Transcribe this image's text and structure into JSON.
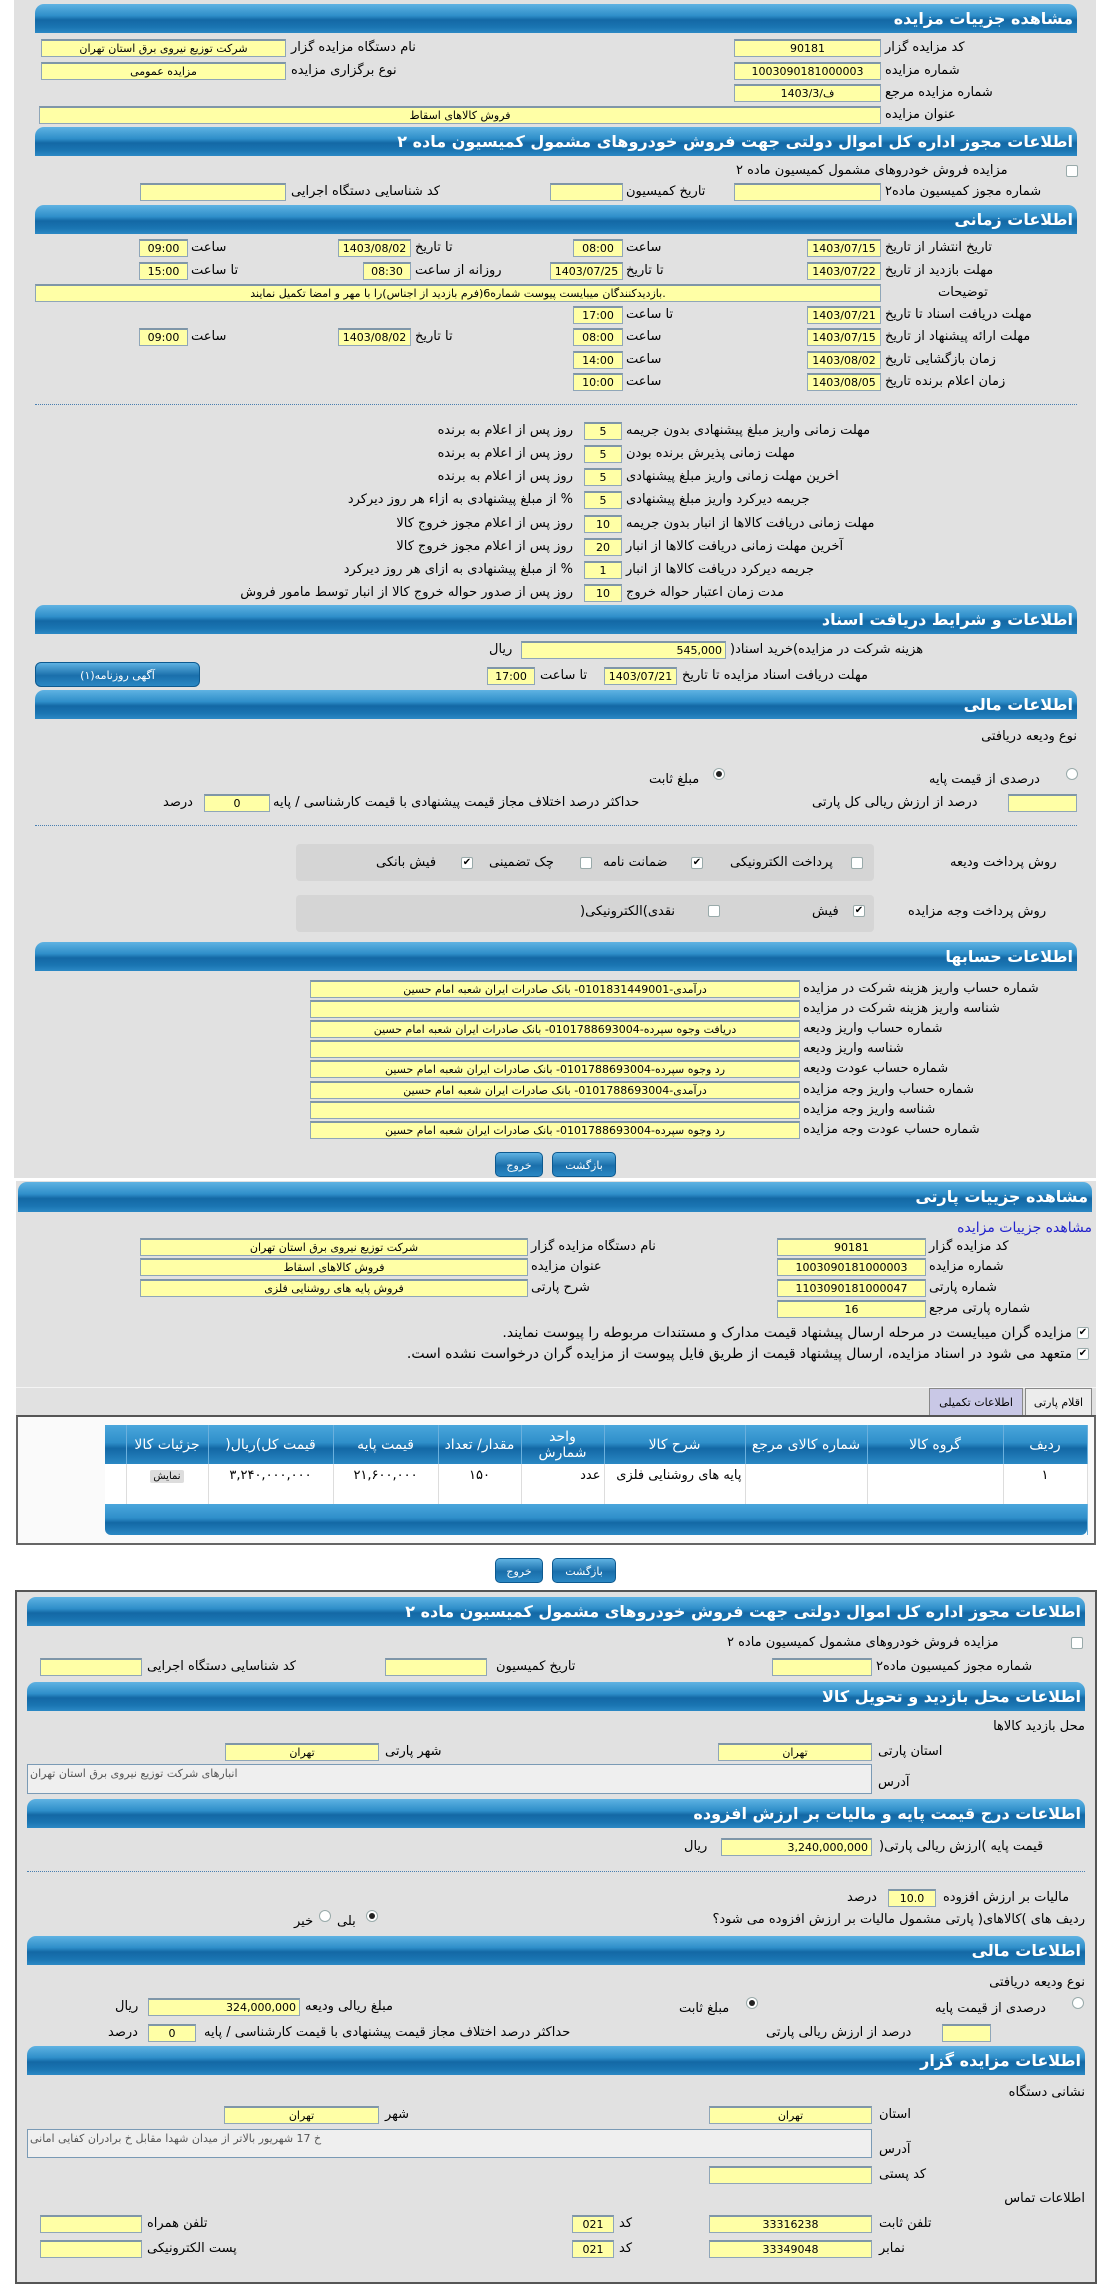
{
  "auction": {
    "header": "مشاهده جزییات مزایده",
    "code_label": "کد مزایده گزار",
    "code": "90181",
    "org_label": "نام دستگاه مزایده گزار",
    "org": "شرکت توزیع نیروی برق استان تهران",
    "number_label": "شماره مزایده",
    "number": "1003090181000003",
    "type_label": "نوع برگزاری مزایده",
    "type": "مزایده عمومی",
    "ref_label": "شماره مزایده مرجع",
    "ref": "1403/3/ف",
    "title_label": "عنوان مزایده",
    "title": "فروش کالاهای اسقاط"
  },
  "commission": {
    "header": "اطلاعات مجوز اداره کل اموال دولتی جهت فروش خودروهای مشمول کمیسیون ماده ۲",
    "checkbox_label": "مزایده فروش خودروهای مشمول کمیسیون ماده ۲",
    "checked": false,
    "permit_label": "شماره مجوز کمیسیون ماده۲",
    "permit": "",
    "date_label": "تاریخ کمیسیون",
    "date": "",
    "exec_label": "کد شناسایی دستگاه اجرایی",
    "exec": ""
  },
  "timing": {
    "header": "اطلاعات زمانی",
    "publish": {
      "label": "تاریخ انتشار  از تاریخ",
      "from": "1403/07/15",
      "time_label": "ساعت",
      "from_time": "08:00",
      "to_label": "تا تاریخ",
      "to": "1403/08/02",
      "to_time_label": "ساعت",
      "to_time": "09:00"
    },
    "visit": {
      "label": "مهلت بازدید  از تاریخ",
      "from": "1403/07/22",
      "to_label": "تا تاریخ",
      "to": "1403/07/25",
      "daily_label": "روزانه از ساعت",
      "daily_from": "08:30",
      "daily_to_label": "تا ساعت",
      "daily_to": "15:00"
    },
    "notes_label": "توضیحات",
    "notes": ".بازدیدکنندگان میبایست پیوست شماره6(فرم بازدید از اجناس)را با مهر و امضا تکمیل نمایند",
    "docs": {
      "label": "مهلت دریافت اسناد  تا تاریخ",
      "to": "1403/07/21",
      "time_label": "تا ساعت",
      "time": "17:00"
    },
    "offer": {
      "label": "مهلت ارائه پیشنهاد  از تاریخ",
      "from": "1403/07/15",
      "time_label": "ساعت",
      "from_time": "08:00",
      "to_label": "تا تاریخ",
      "to": "1403/08/02",
      "to_time_label": "ساعت",
      "to_time": "09:00"
    },
    "opening": {
      "label": "زمان بازگشایی  تاریخ",
      "date": "1403/08/02",
      "time_label": "ساعت",
      "time": "14:00"
    },
    "winner": {
      "label": "زمان اعلام برنده  تاریخ",
      "date": "1403/08/05",
      "time_label": "ساعت",
      "time": "10:00"
    }
  },
  "penalties": [
    {
      "label": "مهلت زمانی واریز مبلغ پیشنهادی بدون جریمه",
      "value": "5",
      "suffix": "روز پس از اعلام به برنده"
    },
    {
      "label": "مهلت زمانی پذیرش برنده بودن",
      "value": "5",
      "suffix": "روز پس از اعلام به برنده"
    },
    {
      "label": "اخرین مهلت زمانی واریز مبلغ پیشنهادی",
      "value": "5",
      "suffix": "روز پس از اعلام به برنده"
    },
    {
      "label": "جریمه دیرکرد واریز مبلغ پیشنهادی",
      "value": "5",
      "suffix": "% از مبلغ پیشنهادی به ازاء هر روز دیرکرد"
    },
    {
      "label": "مهلت زمانی دریافت کالاها از انبار بدون جریمه",
      "value": "10",
      "suffix": "روز پس از اعلام مجوز خروج کالا"
    },
    {
      "label": "آخرین مهلت زمانی دریافت کالاها از انبار",
      "value": "20",
      "suffix": "روز پس از اعلام مجوز خروج کالا"
    },
    {
      "label": "جریمه دیرکرد دریافت کالاها از انبار",
      "value": "1",
      "suffix": "% از مبلغ پیشنهادی به ازای هر روز دیرکرد"
    },
    {
      "label": "مدت زمان اعتبار حواله خروج",
      "value": "10",
      "suffix": "روز پس از صدور حواله خروج کالا از انبار توسط مامور فروش"
    }
  ],
  "documents": {
    "header": "اطلاعات و شرایط دریافت اسناد",
    "fee_label": "هزینه شرکت در مزایده)خرید اسناد(",
    "fee": "545,000",
    "currency": "ریال",
    "deadline_label": "مهلت دریافت اسناد مزایده تا تاریخ",
    "deadline": "1403/07/21",
    "time_label": "تا ساعت",
    "time": "17:00",
    "ad_button": "آگهی روزنامه(۱)"
  },
  "finance": {
    "header": "اطلاعات مالی",
    "deposit_type_label": "نوع ودیعه دریافتی",
    "opt_percent": "درصدی از قیمت پایه",
    "opt_fixed": "مبلغ ثابت",
    "selected": "مبلغ ثابت",
    "percent_value": "",
    "percent_label": "درصد از ارزش ریالی کل پارتی",
    "max_diff_label": "حداکثر درصد اختلاف مجاز قیمت پیشنهادی با قیمت کارشناسی / پایه",
    "max_diff": "0",
    "percent_unit": "درصد",
    "deposit_method_label": "روش پرداخت ودیعه",
    "deposit_methods": [
      {
        "label": "پرداخت الکترونیکی",
        "checked": false
      },
      {
        "label": "ضمانت نامه",
        "checked": true
      },
      {
        "label": "چک تضمینی",
        "checked": false
      },
      {
        "label": "فیش بانکی",
        "checked": true
      }
    ],
    "payment_method_label": "روش پرداخت وجه مزایده",
    "payment_methods": [
      {
        "label": "فیش",
        "checked": true
      },
      {
        "label": "نقدی)الکترونیکی(",
        "checked": false
      }
    ]
  },
  "accounts": {
    "header": "اطلاعات حسابها",
    "rows": [
      {
        "label": "شماره حساب واریز هزینه شرکت در مزایده",
        "value": "درآمدی-0101831449001- بانک صادرات ایران شعبه امام حسین"
      },
      {
        "label": "شناسه واریز هزینه شرکت در مزایده",
        "value": ""
      },
      {
        "label": "شماره حساب واریز ودیعه",
        "value": "دریافت وجوه سپرده-0101788693004- بانک صادرات ایران شعبه امام حسین"
      },
      {
        "label": "شناسه واریز ودیعه",
        "value": ""
      },
      {
        "label": "شماره حساب عودت ودیعه",
        "value": "رد وجوه سپرده-0101788693004- بانک صادرات ایران شعبه امام حسین"
      },
      {
        "label": "شماره حساب واریز وجه مزایده",
        "value": "درآمدی-0101788693004- بانک صادرات ایران شعبه امام حسین"
      },
      {
        "label": "شناسه واریز وجه مزایده",
        "value": ""
      },
      {
        "label": "شماره حساب عودت وجه مزایده",
        "value": "رد وجوه سپرده-0101788693004- بانک صادرات ایران شعبه امام حسین"
      }
    ]
  },
  "buttons": {
    "back": "بازگشت",
    "exit": "خروج"
  },
  "party": {
    "header": "مشاهده جزییات پارتی",
    "link": "مشاهده جزییات مزایده",
    "code_label": "کد مزایده گزار",
    "code": "90181",
    "org_label": "نام دستگاه مزایده گزار",
    "org": "شرکت توزیع نیروی برق استان تهران",
    "number_label": "شماره مزایده",
    "number": "1003090181000003",
    "title_label": "عنوان مزایده",
    "title": "فروش کالاهای اسقاط",
    "party_no_label": "شماره پارتی",
    "party_no": "1103090181000047",
    "desc_label": "شرح پارتی",
    "desc": "فروش پایه های روشنایی فلزی",
    "ref_label": "شماره پارتی مرجع",
    "ref": "16",
    "check1": "مزایده گران میبایست در مرحله ارسال پیشنهاد قیمت مدارک و مستندات مربوطه را پیوست نمایند.",
    "check2": "متعهد می شود در اسناد مزایده، ارسال پیشنهاد قیمت از طریق فایل پیوست از مزایده گران درخواست نشده است.",
    "tabs": [
      "اقلام پارتی",
      "اطلاعات تکمیلی"
    ],
    "columns": [
      "ردیف",
      "گروه کالا",
      "شماره کالای مرجع",
      "شرح کالا",
      "واحد شمارش",
      "مقدار/ تعداد",
      "قیمت پایه",
      "قیمت کل)ریال(",
      "جزئیات کالا"
    ],
    "rows": [
      {
        "row": "۱",
        "group": "",
        "ref": "",
        "desc": "پایه های روشنایی فلزی",
        "unit": "عدد",
        "qty": "۱۵۰",
        "base": "۲۱,۶۰۰,۰۰۰",
        "total": "۳,۲۴۰,۰۰۰,۰۰۰",
        "details": "نمایش"
      }
    ]
  },
  "visit_place": {
    "header": "اطلاعات محل بازدید و تحویل کالا",
    "title": "محل بازدید کالاها",
    "province_label": "استان پارتی",
    "province": "تهران",
    "city_label": "شهر پارتی",
    "city": "تهران",
    "address_label": "آدرس",
    "address": "انبارهای شرکت توزیع نیروی برق استان تهران"
  },
  "pricing": {
    "header": "اطلاعات درج قیمت پایه و مالیات بر ارزش افزوده",
    "base_label": "قیمت پایه )ارزش ریالی پارتی(",
    "base": "3,240,000,000",
    "currency": "ریال",
    "vat_label": "مالیات بر ارزش افزوده",
    "vat": "10.0",
    "vat_unit": "درصد",
    "vat_q": "ردیف های )کالاهای( پارتی مشمول مالیات بر ارزش افزوده می شود؟",
    "yes": "بلی",
    "no": "خیر",
    "selected": "بلی"
  },
  "finance2": {
    "header": "اطلاعات مالی",
    "deposit_type_label": "نوع ودیعه دریافتی",
    "opt_percent": "درصدی از قیمت پایه",
    "opt_fixed": "مبلغ ثابت",
    "selected": "مبلغ ثابت",
    "amount_label": "مبلغ ریالی ودیعه",
    "amount": "324,000,000",
    "currency": "ریال",
    "percent_value": "",
    "percent_label": "درصد از ارزش ریالی پارتی",
    "max_diff_label": "حداکثر درصد اختلاف مجاز قیمت پیشنهادی با قیمت کارشناسی / پایه",
    "max_diff": "0",
    "percent_unit": "درصد"
  },
  "organizer": {
    "header": "اطلاعات مزایده گزار",
    "address_title": "نشانی دستگاه",
    "province_label": "استان",
    "province": "تهران",
    "city_label": "شهر",
    "city": "تهران",
    "address_label": "آدرس",
    "address": "خ 17 شهریور بالاتر از میدان شهدا مقابل خ برادران کفایی امانی",
    "postal_label": "کد پستی",
    "postal": "",
    "contact_title": "اطلاعات تماس",
    "phone_label": "تلفن ثابت",
    "phone": "33316238",
    "code_label": "کد",
    "phone_code": "021",
    "mobile_label": "تلفن همراه",
    "mobile": "",
    "fax_label": "نمابر",
    "fax": "33349048",
    "fax_code": "021",
    "email_label": "پست الکترونیکی",
    "email": ""
  }
}
